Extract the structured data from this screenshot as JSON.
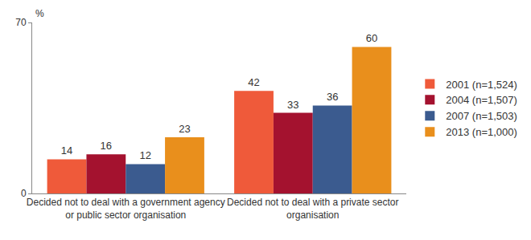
{
  "chart_data": {
    "type": "bar",
    "y_label": "%",
    "categories": [
      "Decided not to deal with a government agency or public sector organisation",
      "Decided not to deal with a private sector organisation"
    ],
    "series": [
      {
        "name": "2001 (n=1,524)",
        "color": "#ef5a3a",
        "values": [
          14,
          42
        ]
      },
      {
        "name": "2004 (n=1,507)",
        "color": "#a4122f",
        "values": [
          16,
          33
        ]
      },
      {
        "name": "2007 (n=1,503)",
        "color": "#3b5b8f",
        "values": [
          12,
          36
        ]
      },
      {
        "name": "2013 (n=1,000)",
        "color": "#e98f1c",
        "values": [
          23,
          60
        ]
      }
    ],
    "ylim": [
      0,
      70
    ],
    "yticks": [
      0,
      70
    ],
    "grid": false,
    "legend": "right",
    "data_labels": true
  }
}
